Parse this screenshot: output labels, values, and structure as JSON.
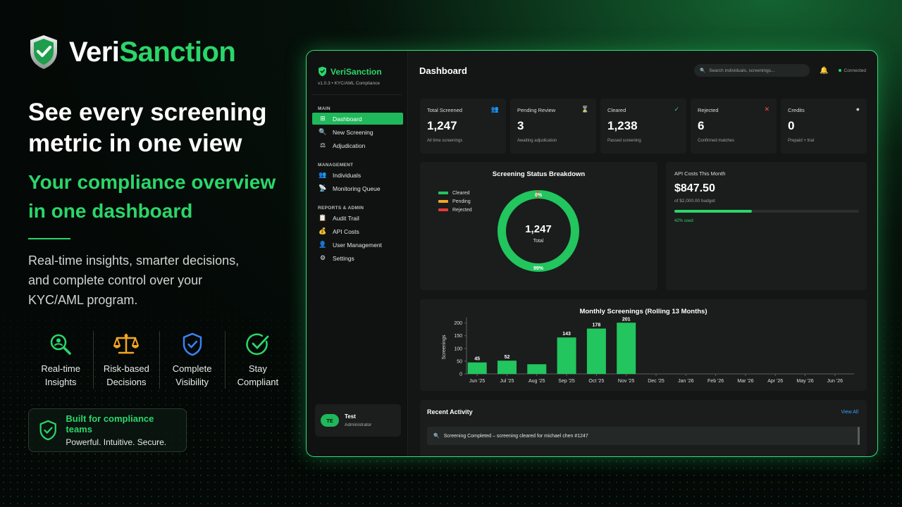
{
  "brand": {
    "part1": "Veri",
    "part2": "Sanction"
  },
  "hero": {
    "headline": "See every screening metric in one view",
    "subhead": "Your compliance overview in one dashboard",
    "description": "Real-time insights, smarter decisions, and complete control over your KYC/AML program."
  },
  "features": [
    {
      "label1": "Real-time",
      "label2": "Insights",
      "icon": "search-user-icon"
    },
    {
      "label1": "Risk-based",
      "label2": "Decisions",
      "icon": "scales-icon"
    },
    {
      "label1": "Complete",
      "label2": "Visibility",
      "icon": "shield-check-icon"
    },
    {
      "label1": "Stay",
      "label2": "Compliant",
      "icon": "check-circle-icon"
    }
  ],
  "badge": {
    "title": "Built for compliance teams",
    "subtitle": "Powerful. Intuitive. Secure."
  },
  "app": {
    "brand_name": "VeriSanction",
    "version": "v1.0.3 • KYC/AML Compliance",
    "sections": {
      "main": "MAIN",
      "management": "MANAGEMENT",
      "reports": "REPORTS & ADMIN"
    },
    "nav": {
      "main": [
        {
          "label": "Dashboard",
          "icon": "grid-icon",
          "active": true
        },
        {
          "label": "New Screening",
          "icon": "search-icon"
        },
        {
          "label": "Adjudication",
          "icon": "scales-icon"
        }
      ],
      "management": [
        {
          "label": "Individuals",
          "icon": "users-icon"
        },
        {
          "label": "Monitoring Queue",
          "icon": "satellite-icon"
        }
      ],
      "reports": [
        {
          "label": "Audit Trail",
          "icon": "clipboard-icon"
        },
        {
          "label": "API Costs",
          "icon": "money-bag-icon"
        },
        {
          "label": "User Management",
          "icon": "user-icon"
        },
        {
          "label": "Settings",
          "icon": "gear-icon"
        }
      ]
    },
    "user": {
      "initials": "TE",
      "name": "Test",
      "role": "Administrator"
    },
    "topbar": {
      "title": "Dashboard",
      "search_placeholder": "Search individuals, screenings...",
      "status": "Connected"
    },
    "stats": [
      {
        "label": "Total Screened",
        "value": "1,247",
        "sub": "All time screenings",
        "icon": "users-icon",
        "color": "#7aa8ff"
      },
      {
        "label": "Pending Review",
        "value": "3",
        "sub": "Awaiting adjudication",
        "icon": "hourglass-icon",
        "color": "#e8c08a"
      },
      {
        "label": "Cleared",
        "value": "1,238",
        "sub": "Passed screening",
        "icon": "check-icon",
        "color": "#2bd66a"
      },
      {
        "label": "Rejected",
        "value": "6",
        "sub": "Confirmed matches",
        "icon": "x-icon",
        "color": "#ff4d4d"
      },
      {
        "label": "Credits",
        "value": "0",
        "sub": "Prepaid + trial",
        "icon": "coin-icon",
        "color": "#c9cfcc"
      }
    ],
    "api_costs": {
      "label": "API Costs This Month",
      "value": "$847.50",
      "budget": "of $2,000.00 budget",
      "used_text": "42% used",
      "used_fraction": 0.42
    },
    "activity": {
      "title": "Recent Activity",
      "view_all": "View All",
      "items": [
        {
          "text": "Screening Completed – screening cleared for michael chen #1247",
          "icon": "search-icon"
        }
      ]
    }
  },
  "colors": {
    "accent": "#2bd66a",
    "cleared": "#22c55e",
    "pending": "#f5a623",
    "rejected": "#e53935"
  },
  "chart_data": [
    {
      "type": "pie",
      "title": "Screening Status Breakdown",
      "center_value": "1,247",
      "center_label": "Total",
      "categories": [
        "Cleared",
        "Pending",
        "Rejected"
      ],
      "values": [
        1238,
        3,
        6
      ],
      "slice_labels": [
        "99%",
        "0%",
        ""
      ],
      "donut": true
    },
    {
      "type": "bar",
      "title": "Monthly Screenings (Rolling 13 Months)",
      "ylabel": "Screenings",
      "categories": [
        "Jun '25",
        "Jul '25",
        "Aug '25",
        "Sep '25",
        "Oct '25",
        "Nov '25",
        "Dec '25",
        "Jan '26",
        "Feb '26",
        "Mar '26",
        "Apr '26",
        "May '26",
        "Jun '26"
      ],
      "values": [
        45,
        52,
        38,
        143,
        178,
        201,
        0,
        0,
        0,
        0,
        0,
        0,
        0
      ],
      "data_labels": [
        "45",
        "52",
        "",
        "143",
        "178",
        "201",
        "",
        "",
        "",
        "",
        "",
        "",
        ""
      ],
      "yticks": [
        0,
        50,
        100,
        150,
        200
      ],
      "ylim": [
        0,
        210
      ],
      "grid": false
    }
  ]
}
